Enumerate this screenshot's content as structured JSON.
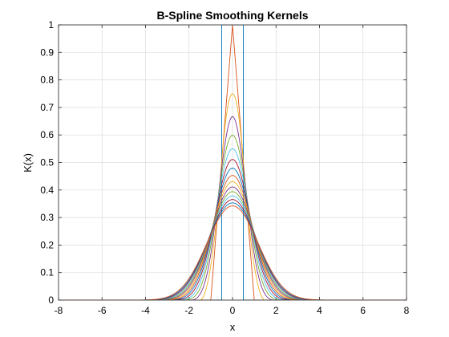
{
  "chart_data": {
    "type": "line",
    "title": "B-Spline Smoothing Kernels",
    "xlabel": "x",
    "ylabel": "K(x)",
    "xlim": [
      -8,
      8
    ],
    "ylim": [
      0,
      1
    ],
    "xticks": [
      -8,
      -6,
      -4,
      -2,
      0,
      2,
      4,
      6,
      8
    ],
    "yticks": [
      0,
      0.1,
      0.2,
      0.3,
      0.4,
      0.5,
      0.6,
      0.7,
      0.8,
      0.9,
      1
    ],
    "grid": true,
    "series_kind": "cardinal B-spline kernels of order n = 1..16 (peak K(0) read from chart)",
    "series": [
      {
        "order": 1,
        "peak": 1.0,
        "color": "#0072BD"
      },
      {
        "order": 2,
        "peak": 1.0,
        "color": "#D95319"
      },
      {
        "order": 3,
        "peak": 0.75,
        "color": "#EDB120"
      },
      {
        "order": 4,
        "peak": 0.667,
        "color": "#7E2F8E"
      },
      {
        "order": 5,
        "peak": 0.599,
        "color": "#77AC30"
      },
      {
        "order": 6,
        "peak": 0.55,
        "color": "#4DBEEE"
      },
      {
        "order": 7,
        "peak": 0.511,
        "color": "#A2142F"
      },
      {
        "order": 8,
        "peak": 0.479,
        "color": "#0072BD"
      },
      {
        "order": 9,
        "peak": 0.453,
        "color": "#D95319"
      },
      {
        "order": 10,
        "peak": 0.43,
        "color": "#EDB120"
      },
      {
        "order": 11,
        "peak": 0.41,
        "color": "#7E2F8E"
      },
      {
        "order": 12,
        "peak": 0.393,
        "color": "#77AC30"
      },
      {
        "order": 13,
        "peak": 0.377,
        "color": "#4DBEEE"
      },
      {
        "order": 14,
        "peak": 0.364,
        "color": "#A2142F"
      },
      {
        "order": 15,
        "peak": 0.352,
        "color": "#0072BD"
      },
      {
        "order": 16,
        "peak": 0.341,
        "color": "#D95319"
      }
    ]
  }
}
